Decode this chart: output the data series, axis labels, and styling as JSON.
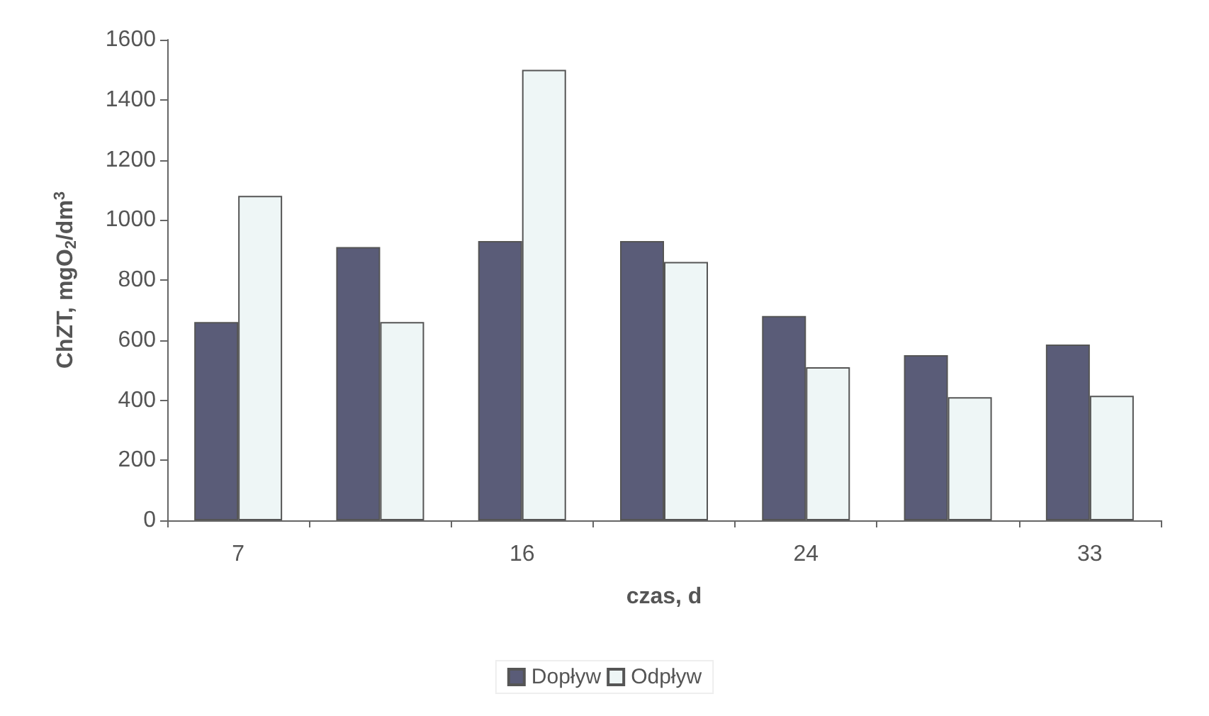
{
  "chart_data": {
    "type": "bar",
    "xlabel": "czas, d",
    "ylabel": "ChZT, mgO$_{2}$/dm$^{3}$",
    "categories": [
      "7",
      null,
      "16",
      null,
      "24",
      null,
      "33"
    ],
    "series": [
      {
        "name": "Dopływ",
        "color": "#5a5c78",
        "values": [
          660,
          910,
          930,
          930,
          680,
          550,
          585
        ]
      },
      {
        "name": "Odpływ",
        "color": "#eef6f6",
        "values": [
          1080,
          660,
          1500,
          860,
          510,
          410,
          415
        ]
      }
    ],
    "ylim": [
      0,
      1600
    ],
    "yticks": [
      0,
      200,
      400,
      600,
      800,
      1000,
      1200,
      1400,
      1600
    ],
    "grid": false,
    "legend": "bottom"
  }
}
